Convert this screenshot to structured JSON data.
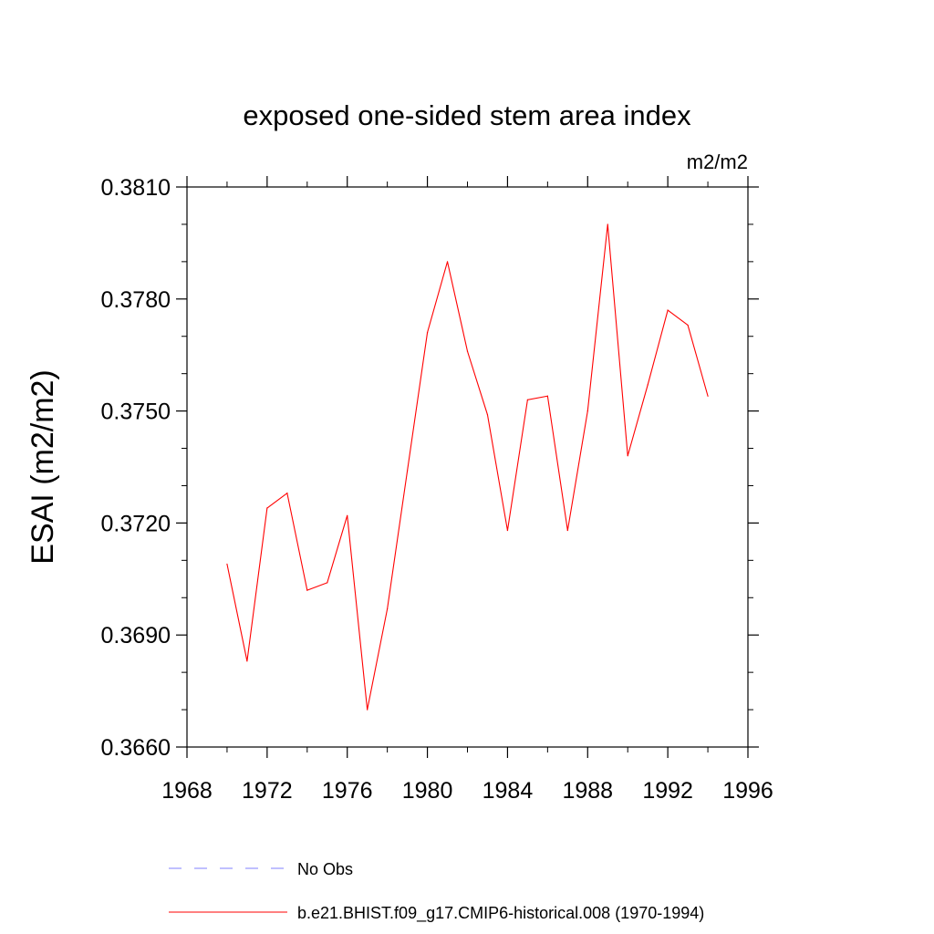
{
  "chart_data": {
    "type": "line",
    "title": "exposed one-sided stem area index",
    "units": "m2/m2",
    "ylabel": "ESAI  (m2/m2)",
    "xlabel": "",
    "xlim": [
      1968,
      1996
    ],
    "ylim": [
      0.366,
      0.381
    ],
    "x_ticks": [
      1968,
      1972,
      1976,
      1980,
      1984,
      1988,
      1992,
      1996
    ],
    "x_tick_labels": [
      "1968",
      "1972",
      "1976",
      "1980",
      "1984",
      "1988",
      "1992",
      "1996"
    ],
    "y_ticks": [
      0.366,
      0.369,
      0.372,
      0.375,
      0.378,
      0.381
    ],
    "y_tick_labels": [
      "0.3660",
      "0.3690",
      "0.3720",
      "0.3750",
      "0.3780",
      "0.3810"
    ],
    "grid": false,
    "legend_position": "bottom",
    "series": [
      {
        "name": "b.e21.BHIST.f09_g17.CMIP6-historical.008 (1970-1994)",
        "color": "#ff0000",
        "style": "solid",
        "x": [
          1970,
          1971,
          1972,
          1973,
          1974,
          1975,
          1976,
          1977,
          1978,
          1979,
          1980,
          1981,
          1982,
          1983,
          1984,
          1985,
          1986,
          1987,
          1988,
          1989,
          1990,
          1991,
          1992,
          1993,
          1994
        ],
        "values": [
          0.3709,
          0.3683,
          0.3724,
          0.3728,
          0.3702,
          0.3704,
          0.3722,
          0.367,
          0.3697,
          0.3734,
          0.3771,
          0.379,
          0.3766,
          0.3749,
          0.3718,
          0.3753,
          0.3754,
          0.3718,
          0.375,
          0.38,
          0.3738,
          0.3757,
          0.3777,
          0.3773,
          0.3754
        ]
      }
    ],
    "legend": [
      {
        "label": "No Obs",
        "color": "#8080ff",
        "style": "dashed"
      },
      {
        "label": "b.e21.BHIST.f09_g17.CMIP6-historical.008 (1970-1994)",
        "color": "#ff0000",
        "style": "solid"
      }
    ]
  }
}
